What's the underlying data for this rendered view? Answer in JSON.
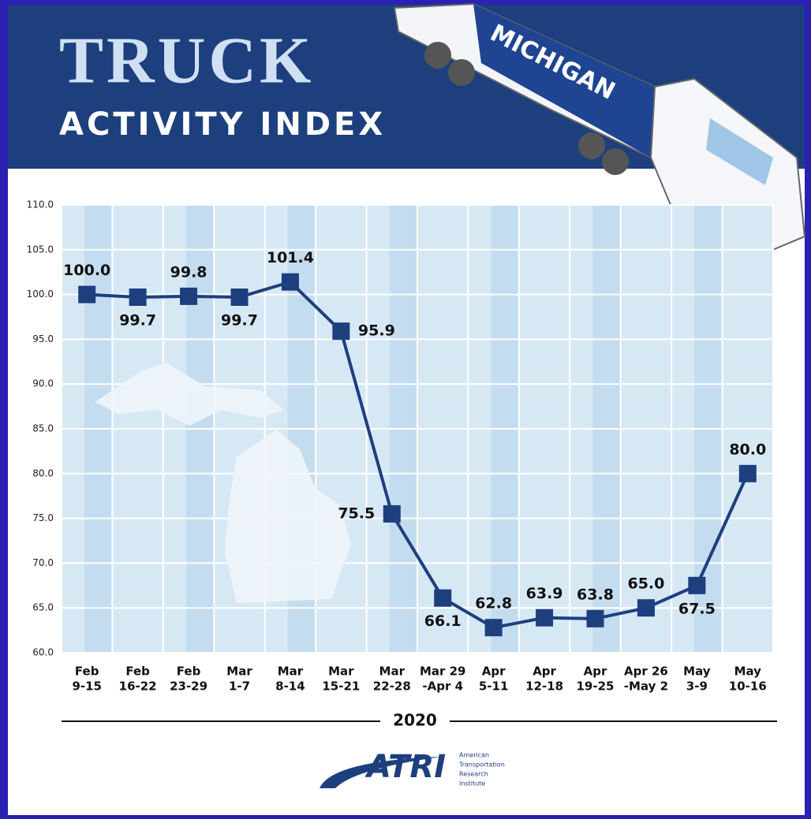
{
  "header": {
    "title": "TRUCK",
    "subtitle": "ACTIVITY INDEX",
    "truck_label": "MICHIGAN"
  },
  "chart_data": {
    "type": "line",
    "categories": [
      [
        "Feb",
        "9-15"
      ],
      [
        "Feb",
        "16-22"
      ],
      [
        "Feb",
        "23-29"
      ],
      [
        "Mar",
        "1-7"
      ],
      [
        "Mar",
        "8-14"
      ],
      [
        "Mar",
        "15-21"
      ],
      [
        "Mar",
        "22-28"
      ],
      [
        "Mar 29",
        "-Apr 4"
      ],
      [
        "Apr",
        "5-11"
      ],
      [
        "Apr",
        "12-18"
      ],
      [
        "Apr",
        "19-25"
      ],
      [
        "Apr 26",
        "-May 2"
      ],
      [
        "May",
        "3-9"
      ],
      [
        "May",
        "10-16"
      ]
    ],
    "values": [
      100,
      99.7,
      99.8,
      99.7,
      101.4,
      95.9,
      75.5,
      66.1,
      62.8,
      63.9,
      63.8,
      65,
      67.5,
      80
    ],
    "value_labels": [
      "100.0",
      "99.7",
      "99.8",
      "99.7",
      "101.4",
      "95.9",
      "75.5",
      "66.1",
      "62.8",
      "63.9",
      "63.8",
      "65.0",
      "67.5",
      "80.0"
    ],
    "color": "#1d3f7e",
    "ylim": [
      60,
      110
    ],
    "yticks": [
      {
        "value": 60,
        "label": "60.0"
      },
      {
        "value": 65,
        "label": "65.0"
      },
      {
        "value": 70,
        "label": "70.0"
      },
      {
        "value": 75,
        "label": "75.0"
      },
      {
        "value": 80,
        "label": "80.0"
      },
      {
        "value": 85,
        "label": "85.0"
      },
      {
        "value": 90,
        "label": "90.0"
      },
      {
        "value": 95,
        "label": "95.0"
      },
      {
        "value": 100,
        "label": "100.0"
      },
      {
        "value": 105,
        "label": "105.0"
      },
      {
        "value": 110,
        "label": "110.0"
      }
    ],
    "grid": true,
    "xlabel": "2020"
  },
  "logo": {
    "name": "ATRI",
    "lines": [
      "American",
      "Transportation",
      "Research",
      "Institute"
    ]
  }
}
